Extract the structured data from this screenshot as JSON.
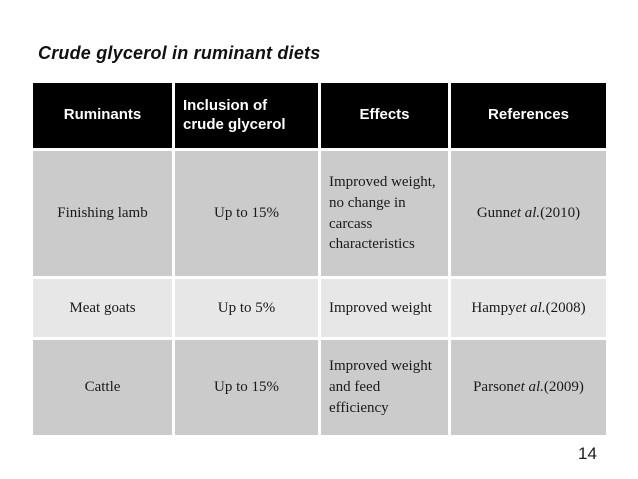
{
  "slide": {
    "title": "Crude glycerol in ruminant diets",
    "page_number": "14"
  },
  "table": {
    "headers": {
      "ruminants": "Ruminants",
      "inclusion": "Inclusion of  crude glycerol",
      "effects": "Effects",
      "references": "References"
    },
    "rows": [
      {
        "ruminant": "Finishing lamb",
        "inclusion": "Up to 15%",
        "effects": "Improved weight, no change in carcass characteristics",
        "reference": {
          "before": "Gunn ",
          "italic": "et al.",
          "after": " (2010)"
        }
      },
      {
        "ruminant": "Meat goats",
        "inclusion": "Up to 5%",
        "effects": "Improved weight",
        "reference": {
          "before": "Hampy ",
          "italic": "et al.",
          "after": " (2008)"
        }
      },
      {
        "ruminant": "Cattle",
        "inclusion": "Up to 15%",
        "effects": "Improved weight and feed efficiency",
        "reference": {
          "before": "Parson ",
          "italic": "et al.",
          "after": " (2009)"
        }
      }
    ]
  },
  "colors": {
    "header_bg": "#000000",
    "header_text": "#ffffff",
    "row_odd_bg": "#cbcbcb",
    "row_even_bg": "#e7e7e7",
    "cell_border": "#ffffff",
    "slide_bg": "#ffffff"
  }
}
